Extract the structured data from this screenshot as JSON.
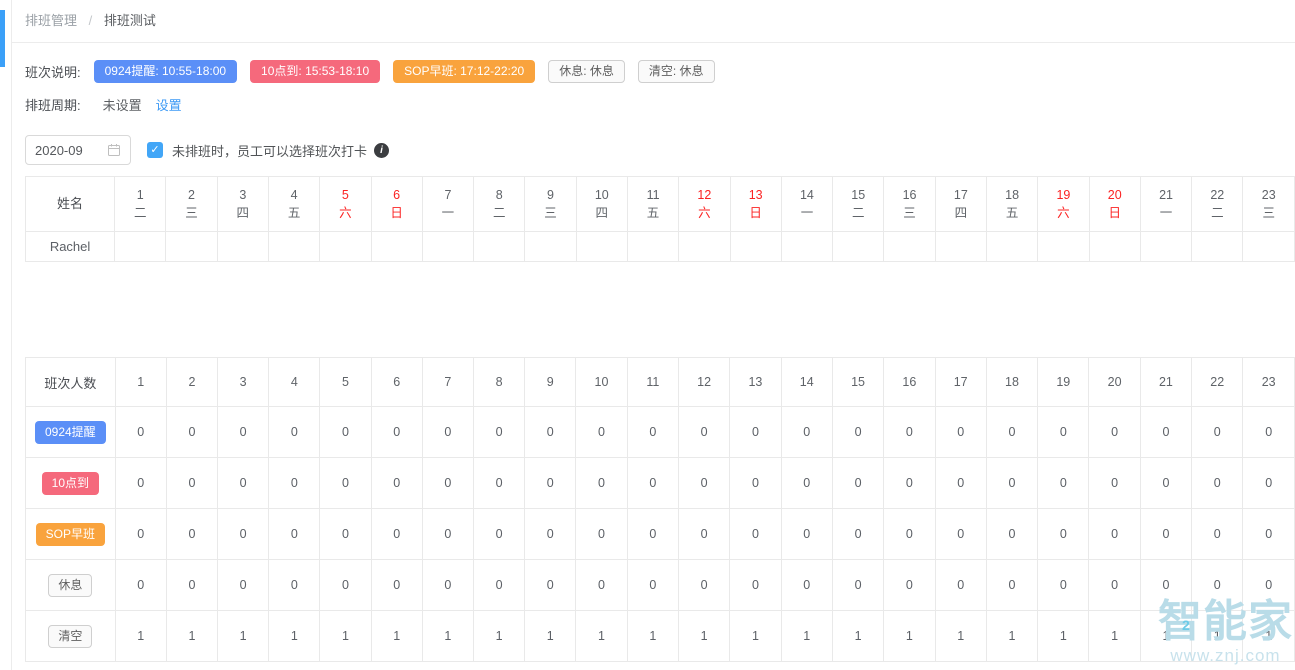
{
  "breadcrumb": {
    "items": [
      "排班管理",
      "排班测试"
    ],
    "separator": "/"
  },
  "shift_legend": {
    "label": "班次说明:",
    "badges": [
      {
        "text": "0924提醒: 10:55-18:00",
        "type": "solid",
        "color": "#5b8ff7"
      },
      {
        "text": "10点到: 15:53-18:10",
        "type": "solid",
        "color": "#f5697c"
      },
      {
        "text": "SOP早班: 17:12-22:20",
        "type": "solid",
        "color": "#f9a33d"
      },
      {
        "text": "休息: 休息",
        "type": "outline",
        "color": ""
      },
      {
        "text": "清空: 休息",
        "type": "outline",
        "color": ""
      }
    ]
  },
  "cycle": {
    "label": "排班周期:",
    "value": "未设置",
    "action": "设置"
  },
  "toolbar": {
    "month": "2020-09",
    "checkbox_checked": true,
    "checkbox_label": "未排班时，员工可以选择班次打卡"
  },
  "schedule_table": {
    "name_header": "姓名",
    "days": [
      {
        "day": "1",
        "weekday": "二",
        "weekend": false
      },
      {
        "day": "2",
        "weekday": "三",
        "weekend": false
      },
      {
        "day": "3",
        "weekday": "四",
        "weekend": false
      },
      {
        "day": "4",
        "weekday": "五",
        "weekend": false
      },
      {
        "day": "5",
        "weekday": "六",
        "weekend": true
      },
      {
        "day": "6",
        "weekday": "日",
        "weekend": true
      },
      {
        "day": "7",
        "weekday": "一",
        "weekend": false
      },
      {
        "day": "8",
        "weekday": "二",
        "weekend": false
      },
      {
        "day": "9",
        "weekday": "三",
        "weekend": false
      },
      {
        "day": "10",
        "weekday": "四",
        "weekend": false
      },
      {
        "day": "11",
        "weekday": "五",
        "weekend": false
      },
      {
        "day": "12",
        "weekday": "六",
        "weekend": true
      },
      {
        "day": "13",
        "weekday": "日",
        "weekend": true
      },
      {
        "day": "14",
        "weekday": "一",
        "weekend": false
      },
      {
        "day": "15",
        "weekday": "二",
        "weekend": false
      },
      {
        "day": "16",
        "weekday": "三",
        "weekend": false
      },
      {
        "day": "17",
        "weekday": "四",
        "weekend": false
      },
      {
        "day": "18",
        "weekday": "五",
        "weekend": false
      },
      {
        "day": "19",
        "weekday": "六",
        "weekend": true
      },
      {
        "day": "20",
        "weekday": "日",
        "weekend": true
      },
      {
        "day": "21",
        "weekday": "一",
        "weekend": false
      },
      {
        "day": "22",
        "weekday": "二",
        "weekend": false
      },
      {
        "day": "23",
        "weekday": "三",
        "weekend": false
      }
    ],
    "rows": [
      {
        "name": "Rachel",
        "cells": [
          "",
          "",
          "",
          "",
          "",
          "",
          "",
          "",
          "",
          "",
          "",
          "",
          "",
          "",
          "",
          "",
          "",
          "",
          "",
          "",
          "",
          "",
          ""
        ]
      }
    ]
  },
  "count_table": {
    "header_label": "班次人数",
    "day_numbers": [
      "1",
      "2",
      "3",
      "4",
      "5",
      "6",
      "7",
      "8",
      "9",
      "10",
      "11",
      "12",
      "13",
      "14",
      "15",
      "16",
      "17",
      "18",
      "19",
      "20",
      "21",
      "22",
      "23"
    ],
    "rows": [
      {
        "badge": "0924提醒",
        "type": "solid",
        "color": "#5b8ff7",
        "values": [
          0,
          0,
          0,
          0,
          0,
          0,
          0,
          0,
          0,
          0,
          0,
          0,
          0,
          0,
          0,
          0,
          0,
          0,
          0,
          0,
          0,
          0,
          0
        ]
      },
      {
        "badge": "10点到",
        "type": "solid",
        "color": "#f5697c",
        "values": [
          0,
          0,
          0,
          0,
          0,
          0,
          0,
          0,
          0,
          0,
          0,
          0,
          0,
          0,
          0,
          0,
          0,
          0,
          0,
          0,
          0,
          0,
          0
        ]
      },
      {
        "badge": "SOP早班",
        "type": "solid",
        "color": "#f9a33d",
        "values": [
          0,
          0,
          0,
          0,
          0,
          0,
          0,
          0,
          0,
          0,
          0,
          0,
          0,
          0,
          0,
          0,
          0,
          0,
          0,
          0,
          0,
          0,
          0
        ]
      },
      {
        "badge": "休息",
        "type": "outline",
        "color": "",
        "values": [
          0,
          0,
          0,
          0,
          0,
          0,
          0,
          0,
          0,
          0,
          0,
          0,
          0,
          0,
          0,
          0,
          0,
          0,
          0,
          0,
          0,
          0,
          0
        ]
      },
      {
        "badge": "清空",
        "type": "outline",
        "color": "",
        "values": [
          1,
          1,
          1,
          1,
          1,
          1,
          1,
          1,
          1,
          1,
          1,
          1,
          1,
          1,
          1,
          1,
          1,
          1,
          1,
          1,
          1,
          1,
          1
        ]
      }
    ]
  },
  "watermark": {
    "brand": "智能家",
    "mark": "2",
    "url": "www.znj.com"
  },
  "colors": {
    "accent_blue": "#3d9af5",
    "checkbox_blue": "#42a6f7",
    "scrollbar_blue": "#3ba0f8",
    "weekend_red": "#fb2323",
    "table_border": "#e9e9e9",
    "watermark": "#b9dce8"
  },
  "layout": {
    "name_col_width": 90,
    "day_col_width": 52
  }
}
